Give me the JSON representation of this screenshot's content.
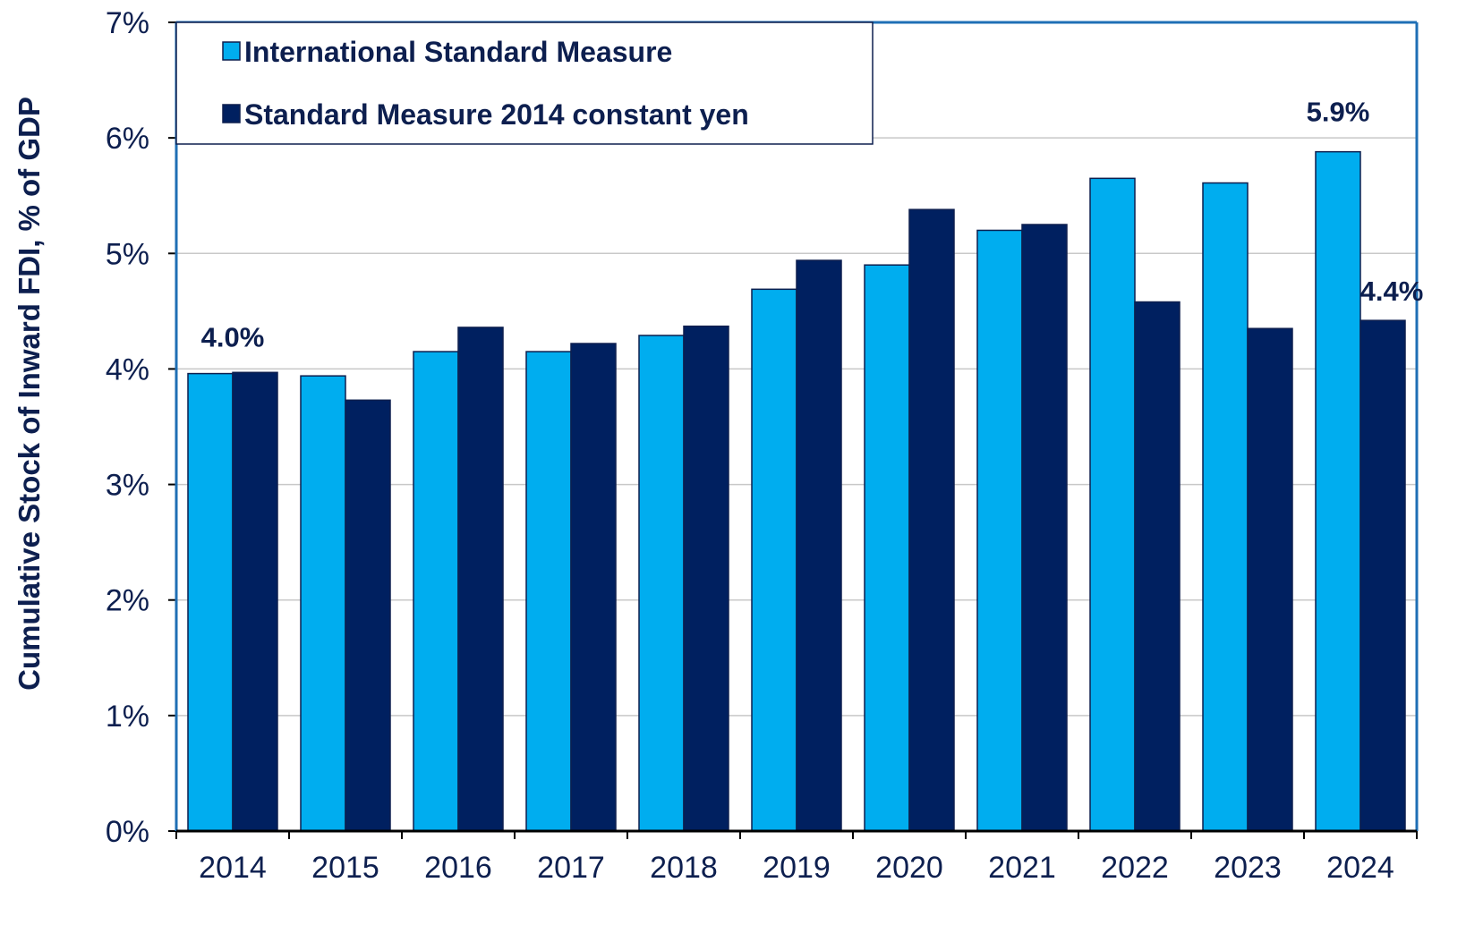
{
  "chart_data": {
    "type": "bar",
    "title": "",
    "xlabel": "",
    "ylabel": "Cumulative Stock of Inward FDI, % of GDP",
    "ylim": [
      0,
      7
    ],
    "y_ticks": [
      "0%",
      "1%",
      "2%",
      "3%",
      "4%",
      "5%",
      "6%",
      "7%"
    ],
    "grid": true,
    "legend_position": "top-left",
    "categories": [
      "2014",
      "2015",
      "2016",
      "2017",
      "2018",
      "2019",
      "2020",
      "2021",
      "2022",
      "2023",
      "2024"
    ],
    "series": [
      {
        "name": "International Standard Measure",
        "color": "#00adef",
        "values": [
          3.96,
          3.94,
          4.15,
          4.15,
          4.29,
          4.69,
          4.9,
          5.2,
          5.65,
          5.61,
          5.88
        ]
      },
      {
        "name": "Standard Measure 2014 constant yen",
        "color": "#002060",
        "values": [
          3.97,
          3.73,
          4.36,
          4.22,
          4.37,
          4.94,
          5.38,
          5.25,
          4.58,
          4.35,
          4.42
        ]
      }
    ],
    "annotations": [
      {
        "text": "4.0%",
        "category": "2014",
        "series": 0
      },
      {
        "text": "5.9%",
        "category": "2024",
        "series": 0
      },
      {
        "text": "4.4%",
        "category": "2024",
        "series": 1
      }
    ]
  }
}
